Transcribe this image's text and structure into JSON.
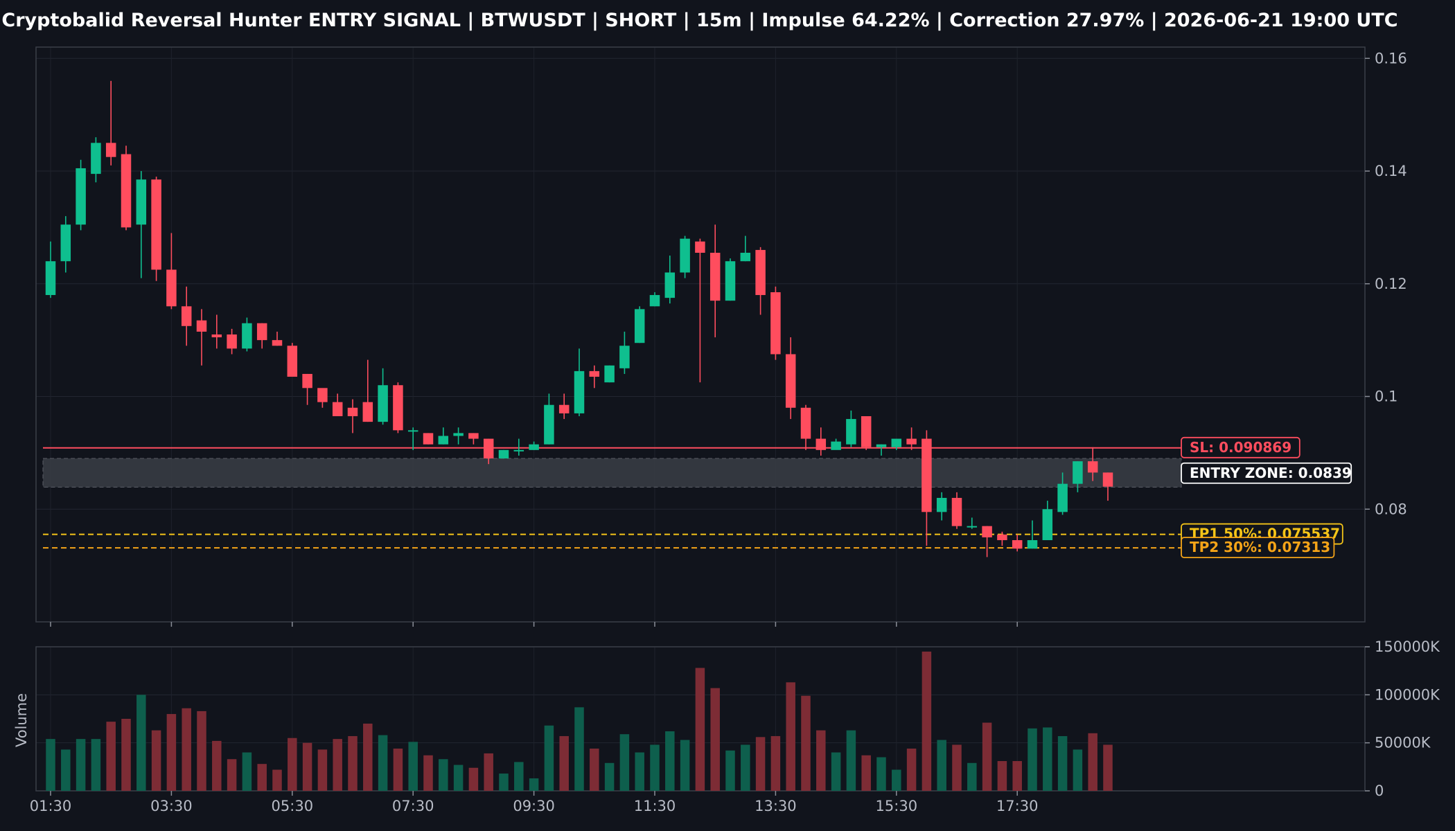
{
  "title": "Cryptobalid Reversal Hunter ENTRY SIGNAL | BTWUSDT | SHORT | 15m | Impulse 64.22% | Correction 27.97% | 2026-06-21 19:00 UTC",
  "colors": {
    "background": "#11141c",
    "bull": "#0fbf8f",
    "bear": "#ff4d5e",
    "bull_volume": "#0e5f4d",
    "bear_volume": "#7d2c35",
    "stop_loss": "#ff4d5e",
    "entry_zone": "#3a3d45",
    "take_profit_1": "#f5c518",
    "take_profit_2": "#f5a418"
  },
  "chart_data": [
    {
      "type": "candlestick",
      "name": "price",
      "x_tick_labels": [
        "01:30",
        "03:30",
        "05:30",
        "07:30",
        "09:30",
        "11:30",
        "13:30",
        "15:30",
        "17:30"
      ],
      "ylim": [
        0.06,
        0.162
      ],
      "y_ticks": [
        0.08,
        0.1,
        0.12,
        0.14,
        0.16
      ],
      "y_tick_labels": [
        "0.08",
        "0.1",
        "0.12",
        "0.14",
        "0.16"
      ],
      "grid": true,
      "ohlc": [
        [
          0.118,
          0.1275,
          0.1175,
          0.124
        ],
        [
          0.124,
          0.132,
          0.122,
          0.1305
        ],
        [
          0.1305,
          0.142,
          0.1295,
          0.1405
        ],
        [
          0.1395,
          0.146,
          0.138,
          0.145
        ],
        [
          0.145,
          0.156,
          0.141,
          0.1425
        ],
        [
          0.143,
          0.1445,
          0.1295,
          0.13
        ],
        [
          0.1305,
          0.14,
          0.121,
          0.1385
        ],
        [
          0.1385,
          0.139,
          0.1205,
          0.1225
        ],
        [
          0.1225,
          0.129,
          0.1155,
          0.116
        ],
        [
          0.116,
          0.1195,
          0.109,
          0.1125
        ],
        [
          0.1135,
          0.1155,
          0.1055,
          0.1115
        ],
        [
          0.111,
          0.1145,
          0.1085,
          0.1105
        ],
        [
          0.111,
          0.112,
          0.1075,
          0.1085
        ],
        [
          0.1085,
          0.114,
          0.108,
          0.113
        ],
        [
          0.113,
          0.113,
          0.1085,
          0.11
        ],
        [
          0.11,
          0.1115,
          0.109,
          0.109
        ],
        [
          0.109,
          0.1095,
          0.1035,
          0.1035
        ],
        [
          0.104,
          0.104,
          0.0985,
          0.1015
        ],
        [
          0.1015,
          0.101,
          0.098,
          0.099
        ],
        [
          0.099,
          0.1005,
          0.0965,
          0.0965
        ],
        [
          0.098,
          0.0995,
          0.0935,
          0.0965
        ],
        [
          0.099,
          0.1065,
          0.0955,
          0.0955
        ],
        [
          0.0955,
          0.105,
          0.095,
          0.102
        ],
        [
          0.102,
          0.1025,
          0.0935,
          0.094
        ],
        [
          0.094,
          0.0945,
          0.0905,
          0.094
        ],
        [
          0.0935,
          0.0935,
          0.0915,
          0.0915
        ],
        [
          0.0915,
          0.0945,
          0.0915,
          0.093
        ],
        [
          0.093,
          0.0945,
          0.0915,
          0.0935
        ],
        [
          0.0935,
          0.0935,
          0.0915,
          0.0925
        ],
        [
          0.0925,
          0.0925,
          0.088,
          0.089
        ],
        [
          0.089,
          0.0905,
          0.089,
          0.0905
        ],
        [
          0.0905,
          0.0925,
          0.0895,
          0.0905
        ],
        [
          0.0905,
          0.092,
          0.0905,
          0.0915
        ],
        [
          0.0915,
          0.1005,
          0.0915,
          0.0985
        ],
        [
          0.0985,
          0.1005,
          0.096,
          0.097
        ],
        [
          0.097,
          0.1085,
          0.0965,
          0.1045
        ],
        [
          0.1045,
          0.1055,
          0.1015,
          0.1035
        ],
        [
          0.1025,
          0.1055,
          0.1025,
          0.1055
        ],
        [
          0.105,
          0.1115,
          0.104,
          0.109
        ],
        [
          0.1095,
          0.116,
          0.1095,
          0.1155
        ],
        [
          0.116,
          0.1185,
          0.116,
          0.118
        ],
        [
          0.1175,
          0.125,
          0.1165,
          0.122
        ],
        [
          0.122,
          0.1285,
          0.121,
          0.128
        ],
        [
          0.1275,
          0.128,
          0.1025,
          0.1255
        ],
        [
          0.1255,
          0.1305,
          0.1105,
          0.117
        ],
        [
          0.117,
          0.1245,
          0.117,
          0.124
        ],
        [
          0.124,
          0.1285,
          0.124,
          0.1255
        ],
        [
          0.126,
          0.1265,
          0.1145,
          0.118
        ],
        [
          0.1185,
          0.1195,
          0.1065,
          0.1075
        ],
        [
          0.1075,
          0.1105,
          0.096,
          0.098
        ],
        [
          0.098,
          0.0985,
          0.0905,
          0.0925
        ],
        [
          0.0925,
          0.0945,
          0.0895,
          0.0905
        ],
        [
          0.0905,
          0.0925,
          0.091,
          0.092
        ],
        [
          0.0915,
          0.0975,
          0.091,
          0.096
        ],
        [
          0.0965,
          0.0965,
          0.0905,
          0.091
        ],
        [
          0.091,
          0.0915,
          0.0895,
          0.0915
        ],
        [
          0.091,
          0.0925,
          0.0905,
          0.0925
        ],
        [
          0.0925,
          0.0945,
          0.0905,
          0.0915
        ],
        [
          0.0925,
          0.094,
          0.0735,
          0.0795
        ],
        [
          0.0795,
          0.083,
          0.078,
          0.082
        ],
        [
          0.082,
          0.083,
          0.0765,
          0.077
        ],
        [
          0.077,
          0.0785,
          0.0765,
          0.077
        ],
        [
          0.077,
          0.077,
          0.0715,
          0.075
        ],
        [
          0.0755,
          0.076,
          0.0735,
          0.0745
        ],
        [
          0.0745,
          0.0755,
          0.0725,
          0.073
        ],
        [
          0.073,
          0.078,
          0.073,
          0.0745
        ],
        [
          0.0745,
          0.0815,
          0.0745,
          0.08
        ],
        [
          0.0795,
          0.0865,
          0.079,
          0.0845
        ],
        [
          0.0845,
          0.0885,
          0.083,
          0.0885
        ],
        [
          0.0885,
          0.091,
          0.085,
          0.0865
        ],
        [
          0.0865,
          0.0865,
          0.0815,
          0.084
        ]
      ],
      "levels": [
        {
          "id": "sl",
          "label": "SL: 0.090869",
          "value": 0.090869,
          "style": "solid"
        },
        {
          "id": "tp1",
          "label": "TP1 50%: 0.075537",
          "value": 0.075537,
          "style": "dashed"
        },
        {
          "id": "tp2",
          "label": "TP2 30%: 0.07313",
          "value": 0.07313,
          "style": "dashed"
        }
      ],
      "entry_zone": {
        "label": "ENTRY ZONE: 0.0839",
        "low": 0.0839,
        "high": 0.089
      }
    },
    {
      "type": "bar",
      "name": "volume",
      "ylabel": "Volume",
      "ylim": [
        0,
        150000
      ],
      "y_ticks": [
        0,
        50000,
        100000,
        150000
      ],
      "y_tick_labels": [
        "0",
        "50000K",
        "100000K",
        "150000K"
      ],
      "values": [
        54000,
        43000,
        54000,
        54000,
        72000,
        75000,
        100000,
        63000,
        80000,
        86000,
        83000,
        52000,
        33000,
        40000,
        28000,
        22000,
        55000,
        50000,
        43000,
        54000,
        57000,
        70000,
        58000,
        44000,
        51000,
        37000,
        33000,
        27000,
        24000,
        39000,
        18000,
        30000,
        13000,
        68000,
        57000,
        87000,
        44000,
        29000,
        59000,
        40000,
        48000,
        62000,
        53000,
        128000,
        107000,
        42000,
        48000,
        56000,
        57000,
        113000,
        99000,
        63000,
        40000,
        63000,
        37000,
        35000,
        22000,
        44000,
        145000,
        53000,
        48000,
        29000,
        71000,
        31000,
        31000,
        65000,
        66000,
        57000,
        43000,
        60000,
        48000
      ]
    }
  ]
}
